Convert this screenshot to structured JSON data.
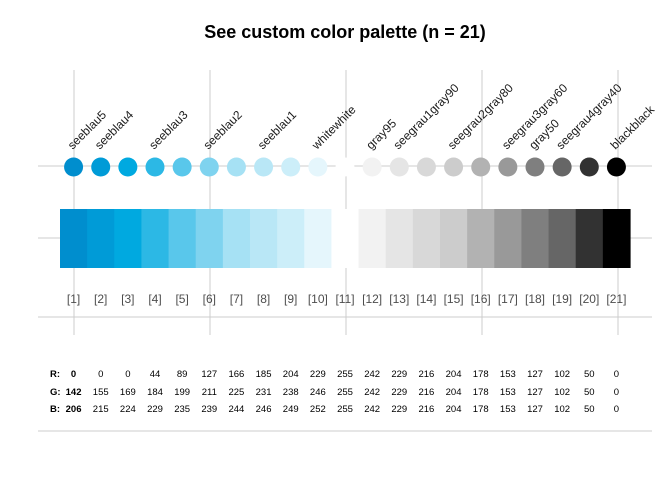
{
  "chart_data": {
    "type": "table",
    "title": "See custom color palette (n = 21)",
    "n": 21,
    "grid": true,
    "colors": [
      {
        "index": "[1]",
        "name": "seeblau5",
        "hex": "#008ECE",
        "r": 0,
        "g": 142,
        "b": 206
      },
      {
        "index": "[2]",
        "name": "seeblau4",
        "hex": "#009BD7",
        "r": 0,
        "g": 155,
        "b": 215
      },
      {
        "index": "[3]",
        "name": "",
        "hex": "#00A9E0",
        "r": 0,
        "g": 169,
        "b": 224
      },
      {
        "index": "[4]",
        "name": "seeblau3",
        "hex": "#2CB8E5",
        "r": 44,
        "g": 184,
        "b": 229
      },
      {
        "index": "[5]",
        "name": "",
        "hex": "#59C7EB",
        "r": 89,
        "g": 199,
        "b": 235
      },
      {
        "index": "[6]",
        "name": "seeblau2",
        "hex": "#7FD3EF",
        "r": 127,
        "g": 211,
        "b": 239
      },
      {
        "index": "[7]",
        "name": "",
        "hex": "#A6E1F4",
        "r": 166,
        "g": 225,
        "b": 244
      },
      {
        "index": "[8]",
        "name": "seeblau1",
        "hex": "#B9E7F6",
        "r": 185,
        "g": 231,
        "b": 246
      },
      {
        "index": "[9]",
        "name": "",
        "hex": "#CCEEF9",
        "r": 204,
        "g": 238,
        "b": 249
      },
      {
        "index": "[10]",
        "name": "whitewhite",
        "hex": "#E5F6FC",
        "r": 229,
        "g": 246,
        "b": 252
      },
      {
        "index": "[11]",
        "name": "",
        "hex": "#FFFFFF",
        "r": 255,
        "g": 255,
        "b": 255
      },
      {
        "index": "[12]",
        "name": "gray95",
        "hex": "#F2F2F2",
        "r": 242,
        "g": 242,
        "b": 242
      },
      {
        "index": "[13]",
        "name": "seegrau1gray90",
        "hex": "#E5E5E5",
        "r": 229,
        "g": 229,
        "b": 229
      },
      {
        "index": "[14]",
        "name": "",
        "hex": "#D8D8D8",
        "r": 216,
        "g": 216,
        "b": 216
      },
      {
        "index": "[15]",
        "name": "seegrau2gray80",
        "hex": "#CCCCCC",
        "r": 204,
        "g": 204,
        "b": 204
      },
      {
        "index": "[16]",
        "name": "",
        "hex": "#B2B2B2",
        "r": 178,
        "g": 178,
        "b": 178
      },
      {
        "index": "[17]",
        "name": "seegrau3gray60",
        "hex": "#999999",
        "r": 153,
        "g": 153,
        "b": 153
      },
      {
        "index": "[18]",
        "name": "gray50",
        "hex": "#7F7F7F",
        "r": 127,
        "g": 127,
        "b": 127
      },
      {
        "index": "[19]",
        "name": "seegrau4gray40",
        "hex": "#666666",
        "r": 102,
        "g": 102,
        "b": 102
      },
      {
        "index": "[20]",
        "name": "",
        "hex": "#323232",
        "r": 50,
        "g": 50,
        "b": 50
      },
      {
        "index": "[21]",
        "name": "blackblack",
        "hex": "#000000",
        "r": 0,
        "g": 0,
        "b": 0
      }
    ],
    "rgb_row_labels": [
      "R:",
      "G:",
      "B:"
    ]
  }
}
